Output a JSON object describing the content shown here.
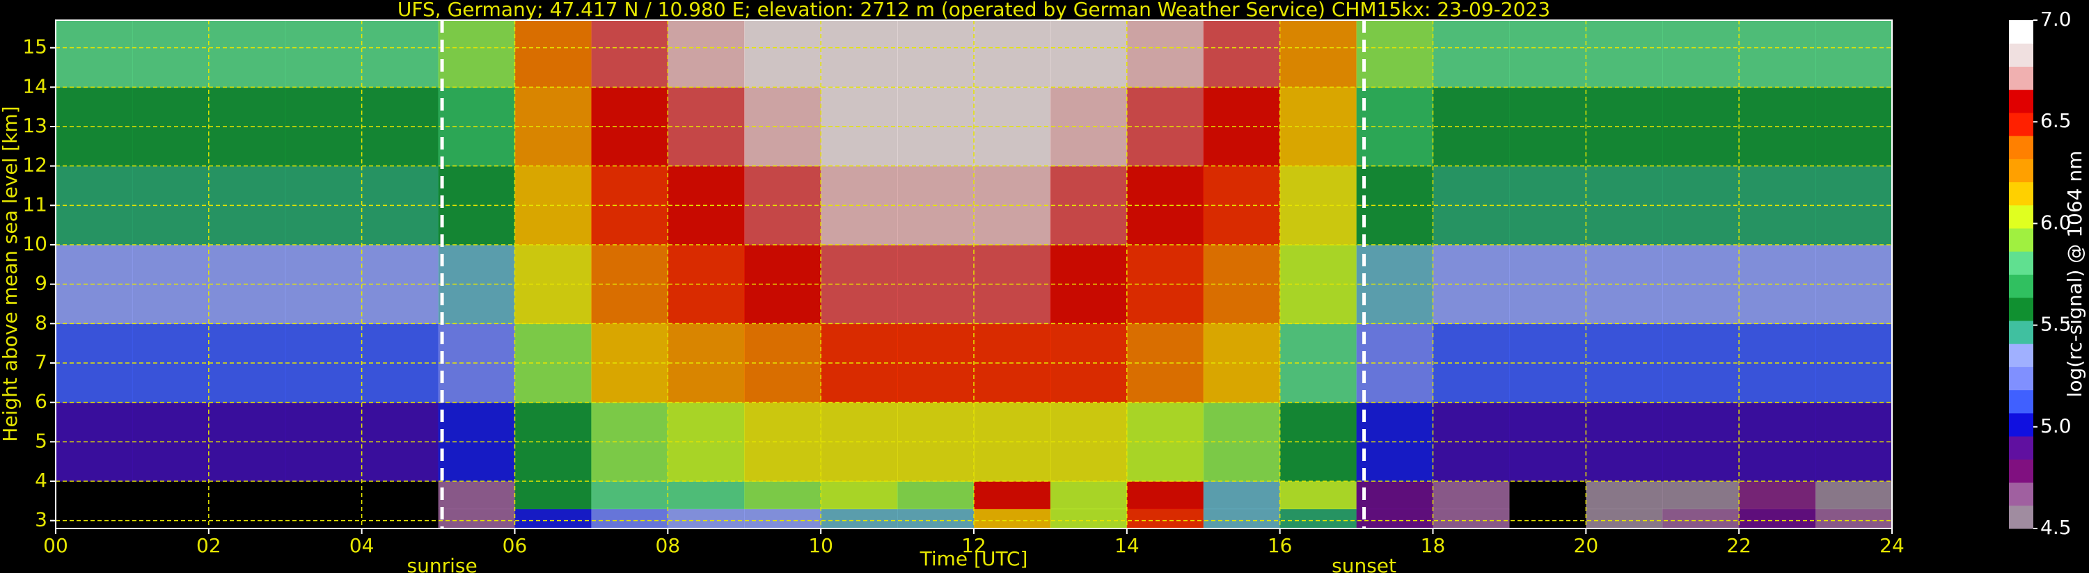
{
  "chart_data": {
    "type": "heatmap",
    "title": "UFS, Germany; 47.417 N / 10.980 E; elevation: 2712 m  (operated by German Weather Service)    CHM15kx: 23-09-2023",
    "x_label": "Time [UTC]",
    "y_label": "Height above mean sea level [km]",
    "xlim": [
      0,
      24
    ],
    "ylim": [
      2.8,
      15.7
    ],
    "xticks": [
      {
        "value": 0,
        "label": "00"
      },
      {
        "value": 2,
        "label": "02"
      },
      {
        "value": 4,
        "label": "04"
      },
      {
        "value": 6,
        "label": "06"
      },
      {
        "value": 8,
        "label": "08"
      },
      {
        "value": 10,
        "label": "10"
      },
      {
        "value": 12,
        "label": "12"
      },
      {
        "value": 14,
        "label": "14"
      },
      {
        "value": 16,
        "label": "16"
      },
      {
        "value": 18,
        "label": "18"
      },
      {
        "value": 20,
        "label": "20"
      },
      {
        "value": 22,
        "label": "22"
      },
      {
        "value": 24,
        "label": "24"
      }
    ],
    "yticks": [
      3,
      4,
      5,
      6,
      7,
      8,
      9,
      10,
      11,
      12,
      13,
      14,
      15
    ],
    "grid": true,
    "grid_color": "#e6e600",
    "x_bins": [
      0,
      1,
      2,
      3,
      4,
      5,
      6,
      7,
      8,
      9,
      10,
      11,
      12,
      13,
      14,
      15,
      16,
      17,
      18,
      19,
      20,
      21,
      22,
      23,
      24
    ],
    "y_bins": [
      2.8,
      3.3,
      4,
      6,
      8,
      10,
      12,
      14,
      15.7
    ],
    "z": [
      [
        4.4,
        4.4,
        4.4,
        4.4,
        4.4,
        4.6,
        5.0,
        5.2,
        5.3,
        5.3,
        5.4,
        5.4,
        6.2,
        6.0,
        6.5,
        5.4,
        5.5,
        4.8,
        4.6,
        4.4,
        4.5,
        4.6,
        4.8,
        4.6
      ],
      [
        4.4,
        4.4,
        4.4,
        4.4,
        4.4,
        4.6,
        5.6,
        5.8,
        5.8,
        5.9,
        6.0,
        5.9,
        6.6,
        6.0,
        6.6,
        5.4,
        6.0,
        4.8,
        4.6,
        4.4,
        4.5,
        4.5,
        4.7,
        4.5
      ],
      [
        4.9,
        4.9,
        4.9,
        4.9,
        4.9,
        5.0,
        5.6,
        5.9,
        6.0,
        6.1,
        6.1,
        6.1,
        6.1,
        6.1,
        6.0,
        5.9,
        5.6,
        5.0,
        4.9,
        4.9,
        4.9,
        4.9,
        4.9,
        4.9
      ],
      [
        5.1,
        5.1,
        5.1,
        5.1,
        5.1,
        5.2,
        5.9,
        6.2,
        6.3,
        6.4,
        6.5,
        6.5,
        6.5,
        6.5,
        6.4,
        6.2,
        5.8,
        5.2,
        5.1,
        5.1,
        5.1,
        5.1,
        5.1,
        5.1
      ],
      [
        5.3,
        5.3,
        5.3,
        5.3,
        5.3,
        5.4,
        6.1,
        6.4,
        6.5,
        6.6,
        6.7,
        6.7,
        6.7,
        6.6,
        6.5,
        6.4,
        6.0,
        5.4,
        5.3,
        5.3,
        5.3,
        5.3,
        5.3,
        5.3
      ],
      [
        5.5,
        5.5,
        5.5,
        5.5,
        5.5,
        5.6,
        6.2,
        6.5,
        6.6,
        6.7,
        6.8,
        6.8,
        6.8,
        6.7,
        6.6,
        6.5,
        6.1,
        5.6,
        5.5,
        5.5,
        5.5,
        5.5,
        5.5,
        5.5
      ],
      [
        5.6,
        5.6,
        5.6,
        5.6,
        5.6,
        5.7,
        6.3,
        6.6,
        6.7,
        6.8,
        6.9,
        6.9,
        6.9,
        6.8,
        6.7,
        6.6,
        6.2,
        5.7,
        5.6,
        5.6,
        5.6,
        5.6,
        5.6,
        5.6
      ],
      [
        5.8,
        5.8,
        5.8,
        5.8,
        5.8,
        5.9,
        6.4,
        6.7,
        6.8,
        6.9,
        6.9,
        6.9,
        6.9,
        6.9,
        6.8,
        6.7,
        6.3,
        5.9,
        5.8,
        5.8,
        5.8,
        5.8,
        5.8,
        5.8
      ]
    ],
    "colorbar": {
      "label": "log(rc-signal) @ 1064 nm",
      "range": [
        4.5,
        7.0
      ],
      "ticks": [
        4.5,
        {
          "value": 5,
          "label": "5.0"
        },
        5.5,
        {
          "value": 6,
          "label": "6.0"
        },
        6.5,
        {
          "value": 7,
          "label": "7.0"
        }
      ],
      "colormap": [
        "#a08ca0",
        "#a060a0",
        "#801080",
        "#6010a0",
        "#1010e0",
        "#4060ff",
        "#8090ff",
        "#a0b0ff",
        "#40c0a0",
        "#109030",
        "#30c060",
        "#60e090",
        "#a0f040",
        "#e0ff20",
        "#ffd000",
        "#ffa000",
        "#ff8000",
        "#ff2000",
        "#e00000",
        "#f0b0b0",
        "#f0e0e0",
        "#ffffff"
      ]
    },
    "annotations": [
      {
        "text": "sunrise",
        "x": 5.05
      },
      {
        "text": "sunset",
        "x": 17.1
      }
    ]
  }
}
